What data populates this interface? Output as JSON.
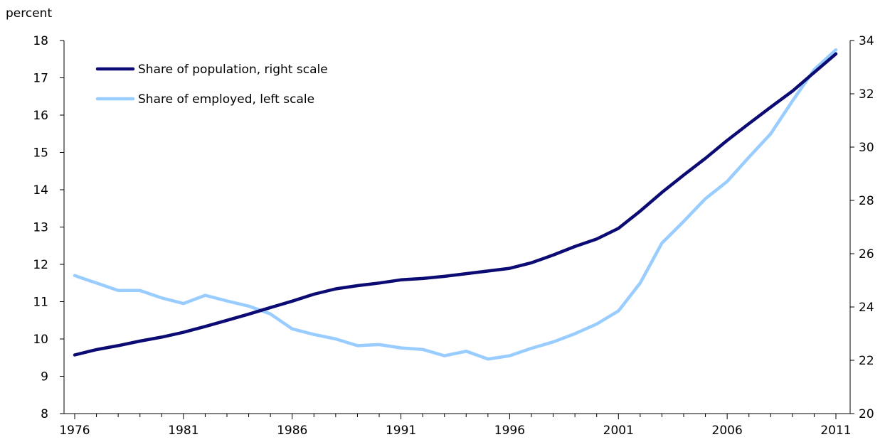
{
  "chart_data": {
    "type": "line",
    "unit_label": "percent",
    "x": [
      1976,
      1977,
      1978,
      1979,
      1980,
      1981,
      1982,
      1983,
      1984,
      1985,
      1986,
      1987,
      1988,
      1989,
      1990,
      1991,
      1992,
      1993,
      1994,
      1995,
      1996,
      1997,
      1998,
      1999,
      2000,
      2001,
      2002,
      2003,
      2004,
      2005,
      2006,
      2007,
      2008,
      2009,
      2010,
      2011
    ],
    "x_ticks": [
      1976,
      1981,
      1986,
      1991,
      1996,
      2001,
      2006,
      2011
    ],
    "xlim": [
      1976,
      2011
    ],
    "y_left": {
      "lim": [
        8,
        18
      ],
      "ticks": [
        8,
        9,
        10,
        11,
        12,
        13,
        14,
        15,
        16,
        17,
        18
      ]
    },
    "y_right": {
      "lim": [
        20,
        34
      ],
      "ticks": [
        20,
        22,
        24,
        26,
        28,
        30,
        32,
        34
      ]
    },
    "grid": false,
    "legend_position": "top-left",
    "series": [
      {
        "name": "Share of population, right scale",
        "axis": "right",
        "color": "#0b0b73",
        "values": [
          22.2,
          22.4,
          22.55,
          22.72,
          22.87,
          23.05,
          23.27,
          23.5,
          23.73,
          23.98,
          24.22,
          24.48,
          24.68,
          24.8,
          24.9,
          25.02,
          25.07,
          25.15,
          25.25,
          25.35,
          25.45,
          25.66,
          25.95,
          26.27,
          26.55,
          26.95,
          27.6,
          28.3,
          28.95,
          29.58,
          30.25,
          30.88,
          31.5,
          32.1,
          32.8,
          33.5
        ]
      },
      {
        "name": "Share of employed, left scale",
        "axis": "left",
        "color": "#99ccff",
        "values": [
          11.7,
          11.5,
          11.3,
          11.3,
          11.1,
          10.95,
          11.17,
          11.02,
          10.88,
          10.67,
          10.27,
          10.12,
          10.0,
          9.82,
          9.85,
          9.76,
          9.72,
          9.55,
          9.67,
          9.46,
          9.55,
          9.75,
          9.92,
          10.14,
          10.4,
          10.75,
          11.5,
          12.57,
          13.15,
          13.76,
          14.22,
          14.87,
          15.5,
          16.38,
          17.22,
          17.75
        ]
      }
    ]
  }
}
